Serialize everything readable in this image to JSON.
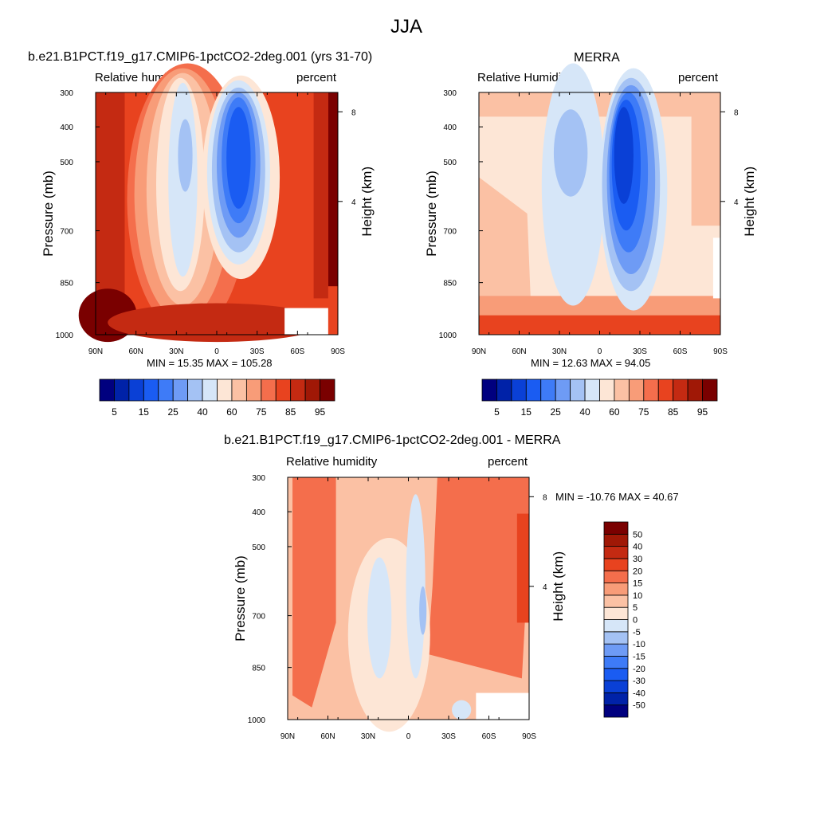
{
  "figure": {
    "title": "JJA",
    "axis_labels": {
      "left": "Pressure (mb)",
      "right": "Height (km)"
    }
  },
  "chart_data": [
    {
      "type": "heatmap",
      "title": "b.e21.B1PCT.f19_g17.CMIP6-1pctCO2-2deg.001 (yrs 31-70)",
      "left_label": "Relative humidity",
      "right_label": "percent",
      "min_max_text": "MIN =  15.35  MAX = 105.28",
      "x_ticks": [
        "90N",
        "60N",
        "30N",
        "0",
        "30S",
        "60S",
        "90S"
      ],
      "y_ticks": [
        "300",
        "400",
        "500",
        "700",
        "850",
        "1000"
      ],
      "height_ticks": [
        "8",
        "4"
      ],
      "levels": [
        5,
        10,
        15,
        20,
        25,
        30,
        40,
        50,
        60,
        70,
        75,
        80,
        85,
        90,
        95
      ],
      "level_labels": [
        "5",
        "15",
        "25",
        "40",
        "60",
        "75",
        "85",
        "95"
      ],
      "palette": [
        "#00007f",
        "#0022a8",
        "#0a40d6",
        "#1a5cf2",
        "#3e7bf7",
        "#6e9bf5",
        "#a4c2f4",
        "#d6e6f8",
        "#fde6d6",
        "#fbc1a4",
        "#f89c78",
        "#f46e4c",
        "#e8431f",
        "#c42a12",
        "#a01806",
        "#7a0000"
      ]
    },
    {
      "type": "heatmap",
      "title": "MERRA",
      "left_label": "Relative Humidity",
      "right_label": "percent",
      "min_max_text": "MIN =  12.63  MAX =  94.05",
      "x_ticks": [
        "90N",
        "60N",
        "30N",
        "0",
        "30S",
        "60S",
        "90S"
      ],
      "y_ticks": [
        "300",
        "400",
        "500",
        "700",
        "850",
        "1000"
      ],
      "height_ticks": [
        "8",
        "4"
      ],
      "levels": [
        5,
        10,
        15,
        20,
        25,
        30,
        40,
        50,
        60,
        70,
        75,
        80,
        85,
        90,
        95
      ],
      "level_labels": [
        "5",
        "15",
        "25",
        "40",
        "60",
        "75",
        "85",
        "95"
      ],
      "palette": [
        "#00007f",
        "#0022a8",
        "#0a40d6",
        "#1a5cf2",
        "#3e7bf7",
        "#6e9bf5",
        "#a4c2f4",
        "#d6e6f8",
        "#fde6d6",
        "#fbc1a4",
        "#f89c78",
        "#f46e4c",
        "#e8431f",
        "#c42a12",
        "#a01806",
        "#7a0000"
      ]
    },
    {
      "type": "heatmap",
      "title": "b.e21.B1PCT.f19_g17.CMIP6-1pctCO2-2deg.001 - MERRA",
      "left_label": "Relative humidity",
      "right_label": "percent",
      "min_max_text": "MIN = -10.76  MAX =  40.67",
      "x_ticks": [
        "90N",
        "60N",
        "30N",
        "0",
        "30S",
        "60S",
        "90S"
      ],
      "y_ticks": [
        "300",
        "400",
        "500",
        "700",
        "850",
        "1000"
      ],
      "height_ticks": [
        "8",
        "4"
      ],
      "levels": [
        -50,
        -40,
        -30,
        -20,
        -15,
        -10,
        -5,
        0,
        5,
        10,
        15,
        20,
        30,
        40,
        50
      ],
      "level_labels": [
        "50",
        "40",
        "30",
        "20",
        "15",
        "10",
        "5",
        "0",
        "-5",
        "-10",
        "-15",
        "-20",
        "-30",
        "-40",
        "-50"
      ],
      "palette": [
        "#00007f",
        "#0022a8",
        "#0a40d6",
        "#1a5cf2",
        "#3e7bf7",
        "#6e9bf5",
        "#a4c2f4",
        "#d6e6f8",
        "#fde6d6",
        "#fbc1a4",
        "#f89c78",
        "#f46e4c",
        "#e8431f",
        "#c42a12",
        "#a01806",
        "#7a0000"
      ]
    }
  ]
}
